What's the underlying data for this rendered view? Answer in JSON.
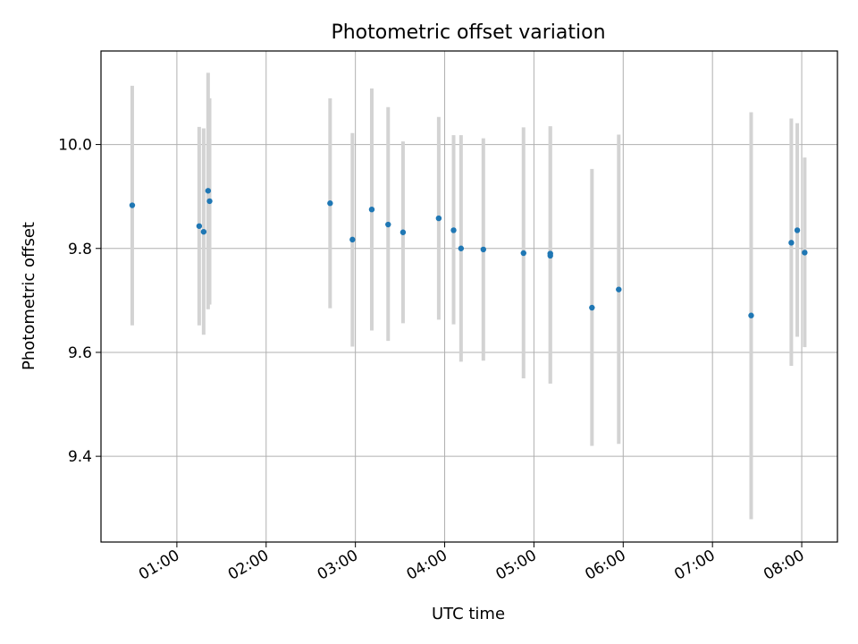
{
  "chart_data": {
    "type": "scatter",
    "title": "Photometric offset variation",
    "xlabel": "UTC time",
    "ylabel": "Photometric offset",
    "xlim": [
      "00:09",
      "08:24"
    ],
    "ylim": [
      9.235,
      10.18
    ],
    "xticks": [
      "01:00",
      "02:00",
      "03:00",
      "04:00",
      "05:00",
      "06:00",
      "07:00",
      "08:00"
    ],
    "yticks": [
      9.4,
      9.6,
      9.8,
      10.0
    ],
    "ytick_labels": [
      "9.4",
      "9.6",
      "9.8",
      "10.0"
    ],
    "grid": true,
    "marker_color": "#1f77b4",
    "errorbar_color": "#d3d3d3",
    "points": [
      {
        "x": "00:30",
        "y": 9.883,
        "ylo": 9.652,
        "yhi": 10.113
      },
      {
        "x": "01:15",
        "y": 9.843,
        "ylo": 9.652,
        "yhi": 10.034
      },
      {
        "x": "01:18",
        "y": 9.832,
        "ylo": 9.634,
        "yhi": 10.031
      },
      {
        "x": "01:21",
        "y": 9.911,
        "ylo": 9.683,
        "yhi": 10.138
      },
      {
        "x": "01:22",
        "y": 9.891,
        "ylo": 9.692,
        "yhi": 10.089
      },
      {
        "x": "02:43",
        "y": 9.887,
        "ylo": 9.685,
        "yhi": 10.089
      },
      {
        "x": "02:58",
        "y": 9.817,
        "ylo": 9.611,
        "yhi": 10.022
      },
      {
        "x": "03:11",
        "y": 9.875,
        "ylo": 9.642,
        "yhi": 10.108
      },
      {
        "x": "03:22",
        "y": 9.846,
        "ylo": 9.622,
        "yhi": 10.072
      },
      {
        "x": "03:32",
        "y": 9.831,
        "ylo": 9.656,
        "yhi": 10.006
      },
      {
        "x": "03:56",
        "y": 9.858,
        "ylo": 9.663,
        "yhi": 10.053
      },
      {
        "x": "04:06",
        "y": 9.835,
        "ylo": 9.654,
        "yhi": 10.018
      },
      {
        "x": "04:11",
        "y": 9.8,
        "ylo": 9.582,
        "yhi": 10.018
      },
      {
        "x": "04:26",
        "y": 9.798,
        "ylo": 9.584,
        "yhi": 10.012
      },
      {
        "x": "04:53",
        "y": 9.791,
        "ylo": 9.55,
        "yhi": 10.033
      },
      {
        "x": "05:11",
        "y": 9.79,
        "ylo": 9.54,
        "yhi": 10.035
      },
      {
        "x": "05:11",
        "y": 9.786,
        "ylo": 9.54,
        "yhi": 10.035
      },
      {
        "x": "05:39",
        "y": 9.686,
        "ylo": 9.42,
        "yhi": 9.953
      },
      {
        "x": "05:57",
        "y": 9.721,
        "ylo": 9.424,
        "yhi": 10.019
      },
      {
        "x": "07:26",
        "y": 9.671,
        "ylo": 9.279,
        "yhi": 10.062
      },
      {
        "x": "07:53",
        "y": 9.811,
        "ylo": 9.574,
        "yhi": 10.05
      },
      {
        "x": "07:57",
        "y": 9.835,
        "ylo": 9.63,
        "yhi": 10.041
      },
      {
        "x": "08:02",
        "y": 9.792,
        "ylo": 9.61,
        "yhi": 9.975
      }
    ]
  }
}
